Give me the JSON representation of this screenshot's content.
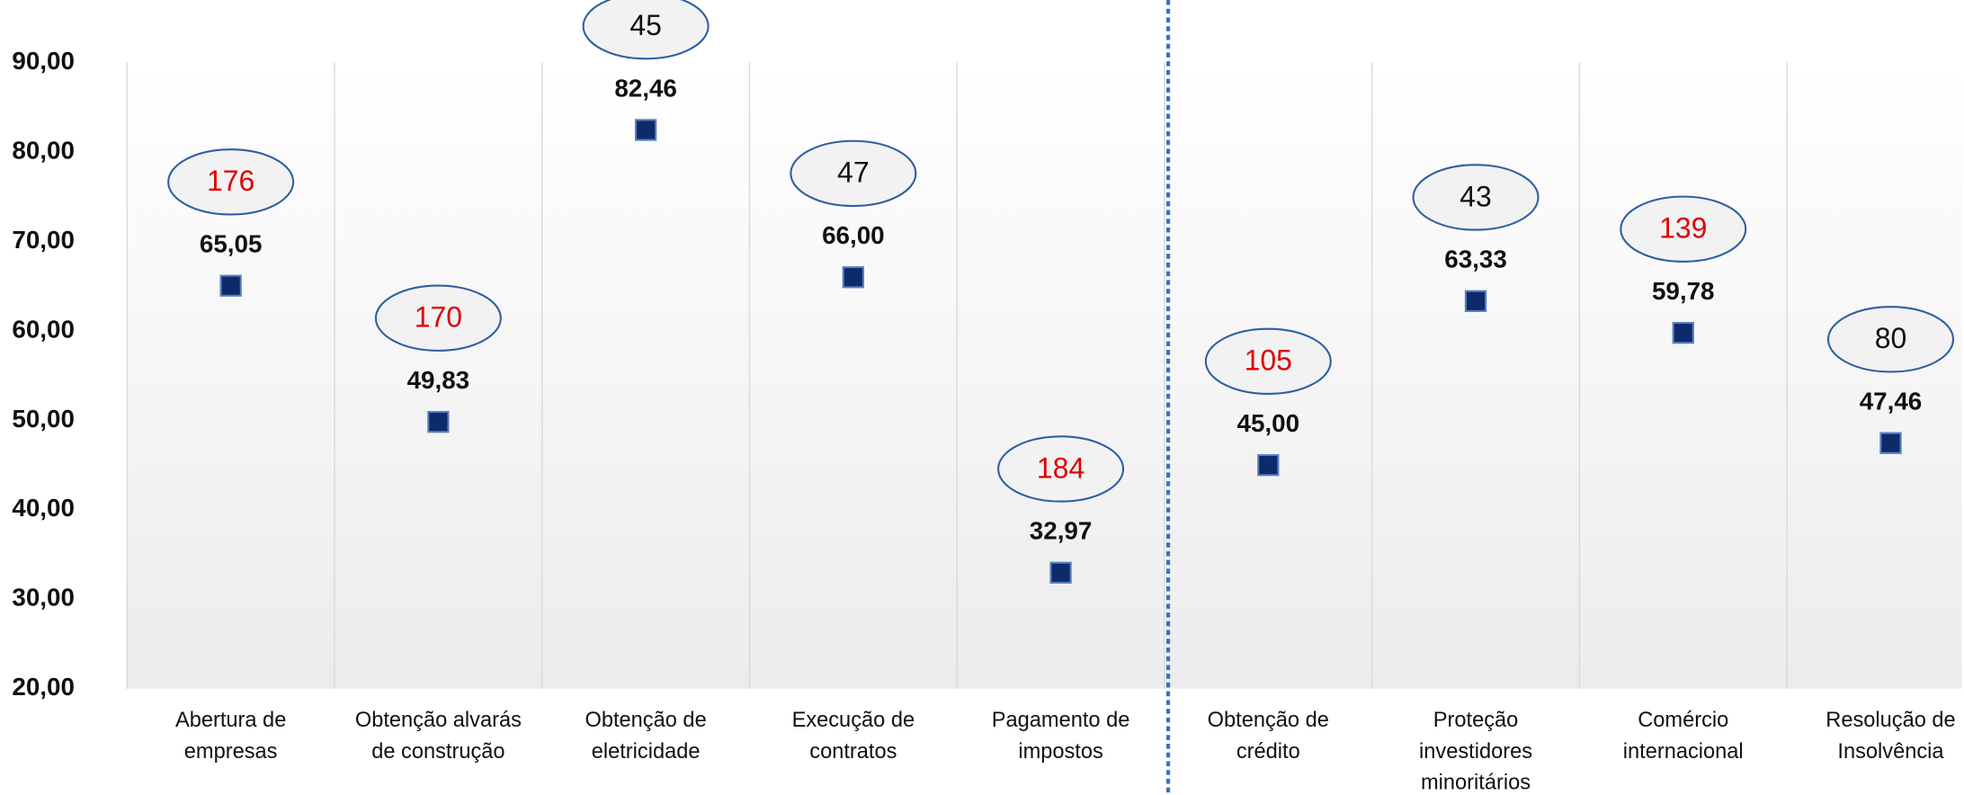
{
  "chart_data": {
    "type": "scatter",
    "categories": [
      [
        "Abertura de",
        "empresas"
      ],
      [
        "Obtenção alvarás",
        "de construção"
      ],
      [
        "Obtenção de",
        "eletricidade"
      ],
      [
        "Execução de",
        "contratos"
      ],
      [
        "Pagamento de",
        "impostos"
      ],
      [
        "Obtenção de",
        "crédito"
      ],
      [
        "Proteção",
        "investidores",
        "minoritários"
      ],
      [
        "Comércio",
        "internacional"
      ],
      [
        "Resolução de",
        "Insolvência"
      ]
    ],
    "values": [
      65.05,
      49.83,
      82.46,
      66.0,
      32.97,
      45.0,
      63.33,
      59.78,
      47.46
    ],
    "value_labels": [
      "65,05",
      "49,83",
      "82,46",
      "66,00",
      "32,97",
      "45,00",
      "63,33",
      "59,78",
      "47,46"
    ],
    "ranks": [
      176,
      170,
      45,
      47,
      184,
      105,
      43,
      139,
      80
    ],
    "rank_colors": [
      "#e00000",
      "#e00000",
      "#111111",
      "#111111",
      "#e00000",
      "#e00000",
      "#111111",
      "#e00000",
      "#111111"
    ],
    "color": "#0d2a6b",
    "ylim": [
      20,
      90
    ],
    "yticks": [
      {
        "value": 20,
        "label": "20,00"
      },
      {
        "value": 30,
        "label": "30,00"
      },
      {
        "value": 40,
        "label": "40,00"
      },
      {
        "value": 50,
        "label": "50,00"
      },
      {
        "value": 60,
        "label": "60,00"
      },
      {
        "value": 70,
        "label": "70,00"
      },
      {
        "value": 80,
        "label": "80,00"
      },
      {
        "value": 90,
        "label": "90,00"
      }
    ],
    "grid": false
  }
}
